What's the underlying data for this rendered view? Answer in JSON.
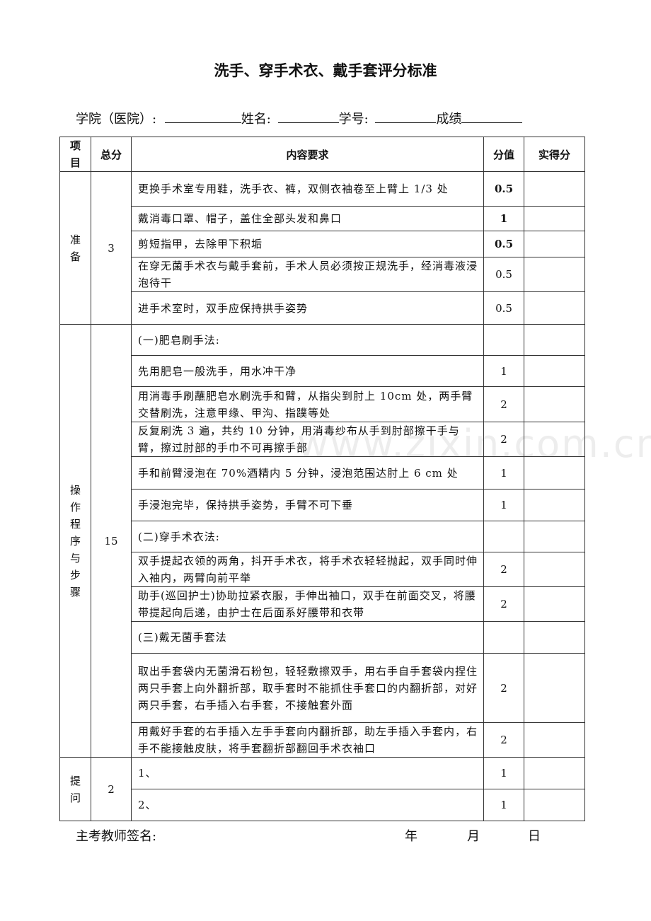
{
  "title": "洗手、穿手术衣、戴手套评分标准",
  "info": {
    "college_label": "学院（医院）:",
    "name_label": "姓名:",
    "id_label": "学号:",
    "score_label": "成绩"
  },
  "table": {
    "headers": [
      "项目",
      "总分",
      "内容要求",
      "分值",
      "实得分"
    ],
    "sections": [
      {
        "item": "准备",
        "total": "3",
        "rows": [
          {
            "content": "更换手术室专用鞋，洗手衣、裤，双侧衣袖卷至上臂上 1/3 处",
            "score": "0.5"
          },
          {
            "content": "戴消毒口罩、帽子，盖住全部头发和鼻口",
            "score": "1"
          },
          {
            "content": "剪短指甲，去除甲下积垢",
            "score": "0.5"
          },
          {
            "content": "在穿无菌手术衣与戴手套前，手术人员必须按正规洗手，经消毒液浸泡待干",
            "score": "0.5"
          },
          {
            "content": "进手术室时，双手应保持拱手姿势",
            "score": "0.5"
          }
        ]
      },
      {
        "item": "操作程序与步骤",
        "total": "15",
        "rows": [
          {
            "content": "(一)肥皂刷手法:",
            "score": ""
          },
          {
            "content": "先用肥皂一般洗手，用水冲干净",
            "score": "1"
          },
          {
            "content": "用消毒手刷蘸肥皂水刷洗手和臂，从指尖到肘上 10cm 处，两手臂交替刷洗，注意甲缘、甲沟、指蹼等处",
            "score": "2"
          },
          {
            "content": "反复刷洗 3 遍，共约 10 分钟，用消毒纱布从手到肘部擦干手与臂，擦过肘部的手巾不可再擦手部",
            "score": "2"
          },
          {
            "content": "手和前臂浸泡在 70%酒精内 5 分钟，浸泡范围达肘上 6 cm 处",
            "score": "1"
          },
          {
            "content": "手浸泡完毕，保持拱手姿势，手臂不可下垂",
            "score": "1"
          },
          {
            "content": "(二)穿手术衣法:",
            "score": ""
          },
          {
            "content": "双手提起衣领的两角，抖开手术衣，将手术衣轻轻抛起，双手同时伸入袖内，两臂向前平举",
            "score": "2"
          },
          {
            "content": "助手(巡回护士)协助拉紧衣服，手伸出袖口，双手在前面交叉，将腰带提起向后递，由护士在后面系好腰带和衣带",
            "score": "2"
          },
          {
            "content": "(三)戴无菌手套法",
            "score": ""
          },
          {
            "content": "取出手套袋内无菌滑石粉包，轻轻敷擦双手，用右手自手套袋内捏住两只手套上向外翻折部，取手套时不能抓住手套口的内翻折部，对好两只手套，右手插入右手套，不接触套外面",
            "score": "2"
          },
          {
            "content": "用戴好手套的右手插入左手手套向内翻折部，助左手插入手套内，右手不能接触皮肤，将手套翻折部翻回手术衣袖口",
            "score": "2"
          }
        ]
      },
      {
        "item": "提问",
        "total": "2",
        "rows": [
          {
            "content": "1、",
            "score": "1"
          },
          {
            "content": "2、",
            "score": "1"
          }
        ]
      }
    ]
  },
  "footer": {
    "signature_label": "主考教师签名:",
    "year": "年",
    "month": "月",
    "day": "日"
  },
  "watermark": "www.zixin.com.cn"
}
